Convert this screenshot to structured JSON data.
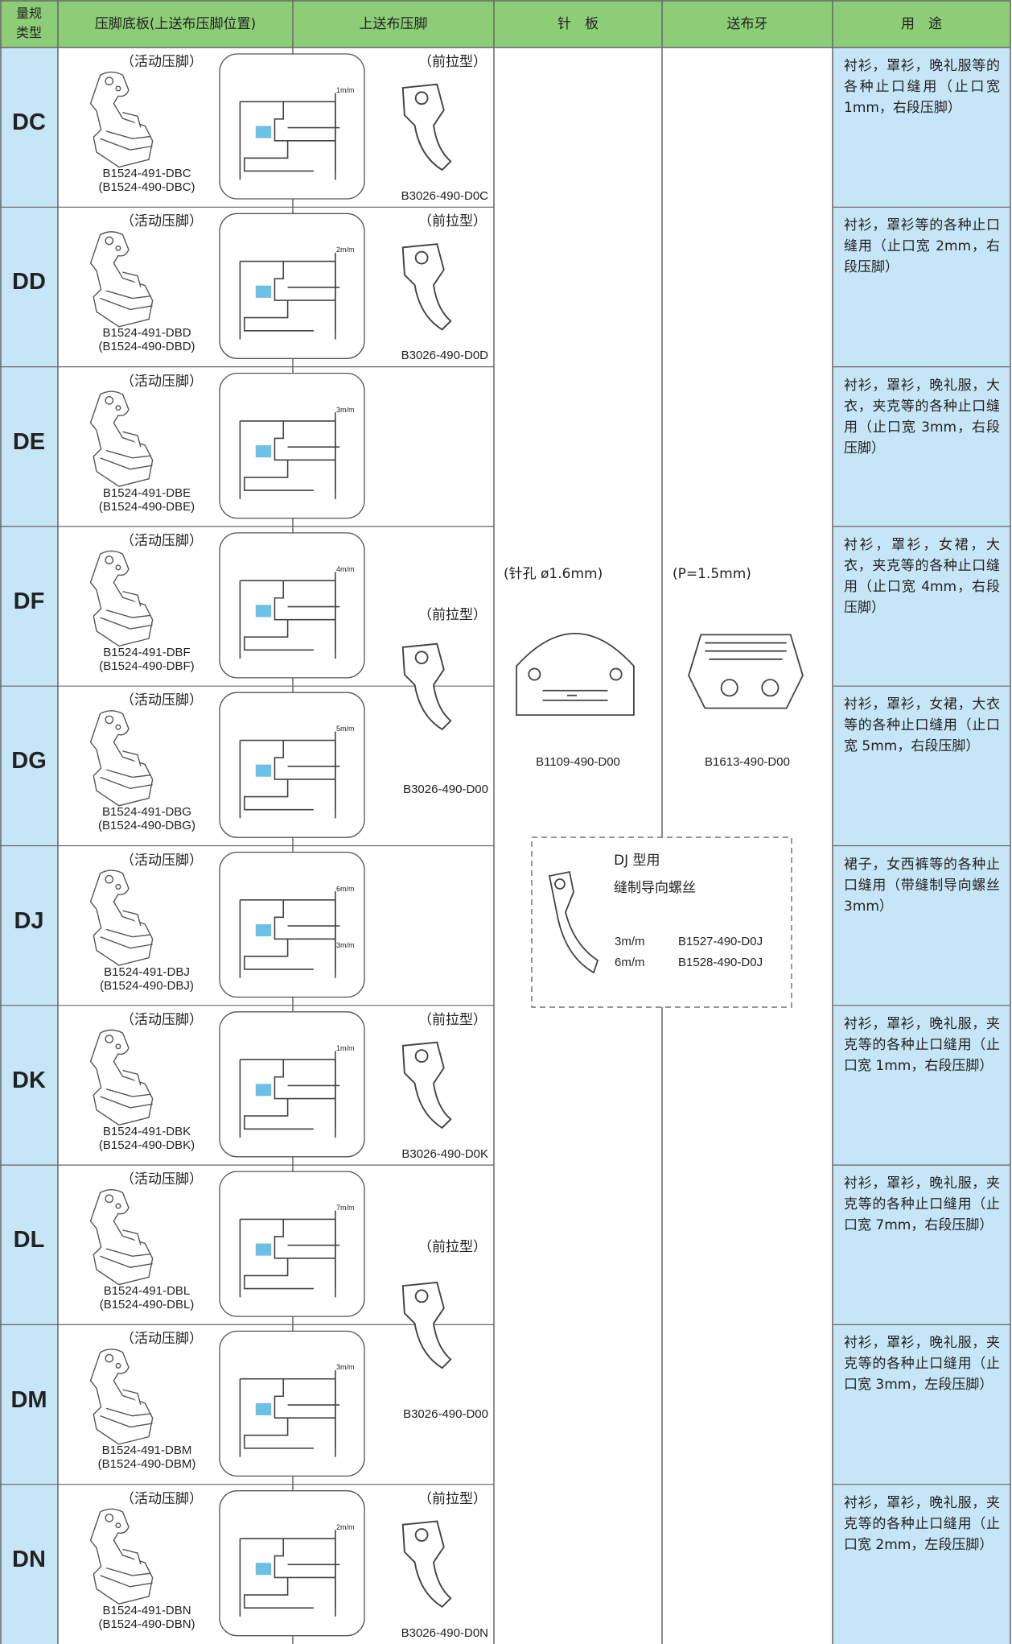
{
  "header": {
    "type_label": [
      "量规",
      "类型"
    ],
    "columns": [
      "压脚底板(上送布压脚位置)",
      "上送布压脚",
      "针　板",
      "送布牙",
      "用　途"
    ]
  },
  "rows": [
    {
      "type": "DC",
      "foot_note": "（活动压脚）",
      "foot_parts": [
        "B1524-491-DBC",
        "(B1524-490-DBC)"
      ],
      "gauges": [
        "1m/m"
      ],
      "upper_note": "（前拉型）",
      "upper_part": "B3026-490-D0C",
      "usage": "衬衫，罩衫，晚礼服等的各种止口缝用（止口宽 1mm，右段压脚）"
    },
    {
      "type": "DD",
      "foot_note": "（活动压脚）",
      "foot_parts": [
        "B1524-491-DBD",
        "(B1524-490-DBD)"
      ],
      "gauges": [
        "2m/m"
      ],
      "upper_note": "（前拉型）",
      "upper_part": "B3026-490-D0D",
      "usage": "衬衫，罩衫等的各种止口缝用（止口宽 2mm，右段压脚）"
    },
    {
      "type": "DE",
      "foot_note": "（活动压脚）",
      "foot_parts": [
        "B1524-491-DBE",
        "(B1524-490-DBE)"
      ],
      "gauges": [
        "3m/m"
      ],
      "usage": "衬衫，罩衫，晚礼服，大衣，夹克等的各种止口缝用（止口宽 3mm，右段压脚）"
    },
    {
      "type": "DF",
      "foot_note": "（活动压脚）",
      "foot_parts": [
        "B1524-491-DBF",
        "(B1524-490-DBF)"
      ],
      "gauges": [
        "4m/m"
      ],
      "upper_note": "（前拉型）",
      "usage": "衬衫，罩衫，女裙，大衣，夹克等的各种止口缝用（止口宽 4mm，右段压脚）"
    },
    {
      "type": "DG",
      "foot_note": "（活动压脚）",
      "foot_parts": [
        "B1524-491-DBG",
        "(B1524-490-DBG)"
      ],
      "gauges": [
        "5m/m"
      ],
      "upper_part": "B3026-490-D00",
      "usage": "衬衫，罩衫，女裙，大衣等的各种止口缝用（止口宽 5mm，右段压脚）"
    },
    {
      "type": "DJ",
      "foot_note": "（活动压脚）",
      "foot_parts": [
        "B1524-491-DBJ",
        "(B1524-490-DBJ)"
      ],
      "gauges": [
        "6m/m",
        "3m/m"
      ],
      "usage": "裙子，女西裤等的各种止口缝用（带缝制导向螺丝 3mm）"
    },
    {
      "type": "DK",
      "foot_note": "（活动压脚）",
      "foot_parts": [
        "B1524-491-DBK",
        "(B1524-490-DBK)"
      ],
      "gauges": [
        "1m/m"
      ],
      "upper_note": "（前拉型）",
      "upper_part": "B3026-490-D0K",
      "usage": "衬衫，罩衫，晚礼服，夹克等的各种止口缝用（止口宽 1mm，右段压脚）"
    },
    {
      "type": "DL",
      "foot_note": "（活动压脚）",
      "foot_parts": [
        "B1524-491-DBL",
        "(B1524-490-DBL)"
      ],
      "gauges": [
        "7m/m"
      ],
      "upper_note": "（前拉型）",
      "usage": "衬衫，罩衫，晚礼服，夹克等的各种止口缝用（止口宽 7mm，右段压脚）"
    },
    {
      "type": "DM",
      "foot_note": "（活动压脚）",
      "foot_parts": [
        "B1524-491-DBM",
        "(B1524-490-DBM)"
      ],
      "gauges": [
        "3m/m"
      ],
      "upper_part": "B3026-490-D00",
      "usage": "衬衫，罩衫，晚礼服，夹克等的各种止口缝用（止口宽 3mm，左段压脚）"
    },
    {
      "type": "DN",
      "foot_note": "（活动压脚）",
      "foot_parts": [
        "B1524-491-DBN",
        "(B1524-490-DBN)"
      ],
      "gauges": [
        "2m/m"
      ],
      "upper_note": "（前拉型）",
      "upper_part": "B3026-490-D0N",
      "usage": "衬衫，罩衫，晚礼服，夹克等的各种止口缝用（止口宽 2mm，左段压脚）"
    }
  ],
  "needle_plate": {
    "note": "(针孔 ø1.6mm)",
    "part": "B1109-490-D00"
  },
  "feed_dog": {
    "note": "(P=1.5mm)",
    "part": "B1613-490-D00"
  },
  "guide_screw": {
    "title": "DJ 型用",
    "name": "缝制导向螺丝",
    "items": [
      [
        "3m/m",
        "B1527-490-D0J"
      ],
      [
        "6m/m",
        "B1528-490-D0J"
      ]
    ]
  }
}
